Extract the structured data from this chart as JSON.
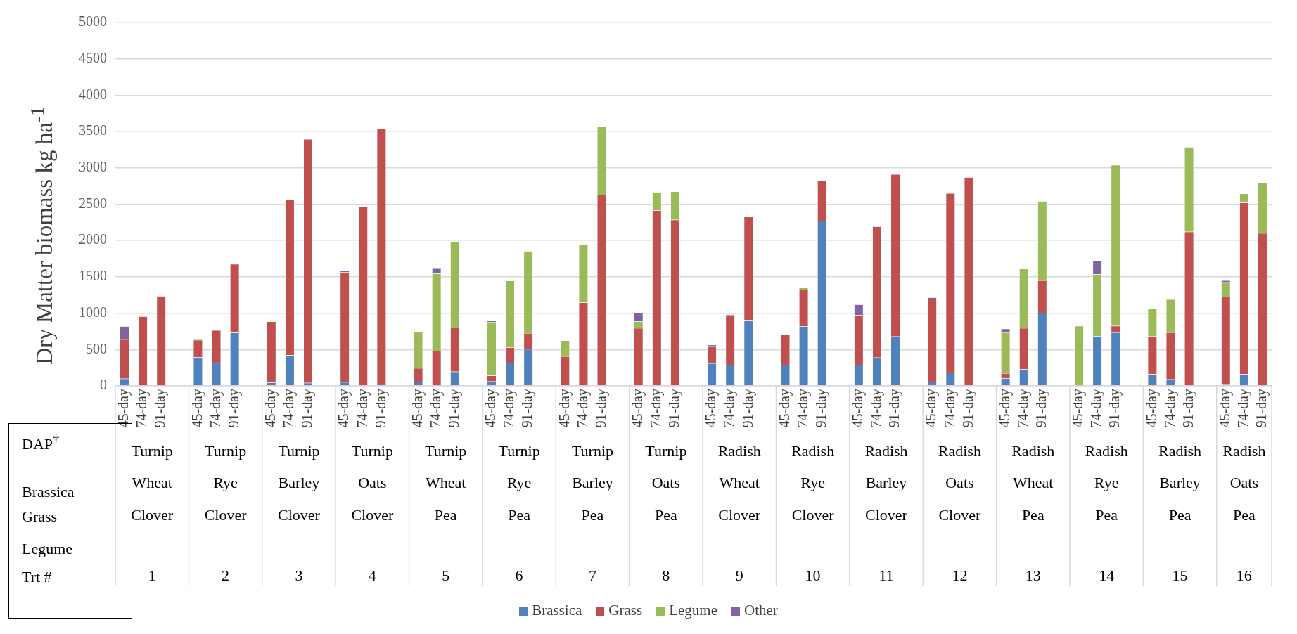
{
  "chart_data": {
    "type": "bar",
    "stacked": true,
    "ylabel": "Dry Matter biomass kg ha$^{-1}$",
    "ylim": [
      0,
      5000
    ],
    "yticks": [
      0,
      500,
      1000,
      1500,
      2000,
      2500,
      3000,
      3500,
      4000,
      4500,
      5000
    ],
    "grid": "y",
    "legend": "bottom",
    "categories": [
      "45-day",
      "74-day",
      "91-day",
      null,
      "45-day",
      "74-day",
      "91-day",
      null,
      "45-day",
      "74-day",
      "91-day",
      null,
      "45-day",
      "74-day",
      "91-day",
      null,
      "45-day",
      "74-day",
      "91-day",
      null,
      "45-day",
      "74-day",
      "91-day",
      null,
      "45-day",
      "74-day",
      "91-day",
      null,
      "45-day",
      "74-day",
      "91-day",
      null,
      "45-day",
      "74-day",
      "91-day",
      null,
      "45-day",
      "74-day",
      "91-day",
      null,
      "45-day",
      "74-day",
      "91-day",
      null,
      "45-day",
      "74-day",
      "91-day",
      null,
      "45-day",
      "74-day",
      "91-day",
      null,
      "45-day",
      "74-day",
      "91-day",
      null,
      "45-day",
      "74-day",
      "91-day",
      null,
      "45-day",
      "74-day",
      "91-day"
    ],
    "series": [
      {
        "name": "Brassica",
        "color": "#4f81bd",
        "values": [
          100,
          0,
          0,
          null,
          395,
          320,
          730,
          null,
          45,
          420,
          40,
          null,
          50,
          0,
          30,
          null,
          55,
          0,
          195,
          null,
          60,
          320,
          505,
          null,
          0,
          0,
          0,
          null,
          0,
          0,
          0,
          null,
          310,
          285,
          905,
          null,
          285,
          820,
          2270,
          null,
          290,
          390,
          680,
          null,
          55,
          180,
          0,
          null,
          105,
          230,
          1000,
          null,
          0,
          685,
          735,
          null,
          160,
          90,
          0,
          null,
          20,
          160,
          0
        ]
      },
      {
        "name": "Grass",
        "color": "#c0504d",
        "values": [
          540,
          955,
          1235,
          null,
          235,
          445,
          945,
          null,
          840,
          2145,
          3355,
          null,
          1515,
          2470,
          3515,
          null,
          190,
          480,
          605,
          null,
          80,
          210,
          220,
          null,
          405,
          1145,
          2625,
          null,
          795,
          2415,
          2285,
          null,
          235,
          685,
          1420,
          null,
          425,
          505,
          555,
          null,
          685,
          1800,
          2230,
          null,
          1140,
          2470,
          2870,
          null,
          70,
          565,
          450,
          null,
          0,
          0,
          90,
          null,
          525,
          645,
          2120,
          null,
          1205,
          2360,
          2100
        ]
      },
      {
        "name": "Legume",
        "color": "#9bbb59",
        "values": [
          0,
          0,
          0,
          null,
          15,
          0,
          0,
          null,
          0,
          0,
          0,
          null,
          0,
          0,
          0,
          null,
          495,
          1065,
          1180,
          null,
          740,
          915,
          1130,
          null,
          220,
          800,
          945,
          null,
          90,
          245,
          390,
          null,
          0,
          0,
          0,
          null,
          0,
          25,
          0,
          null,
          0,
          0,
          0,
          null,
          0,
          0,
          0,
          null,
          560,
          825,
          1090,
          null,
          825,
          850,
          2215,
          null,
          375,
          455,
          1165,
          null,
          200,
          125,
          690
        ]
      },
      {
        "name": "Other",
        "color": "#8064a2",
        "values": [
          180,
          0,
          0,
          null,
          0,
          0,
          0,
          null,
          0,
          0,
          0,
          null,
          25,
          0,
          0,
          null,
          0,
          80,
          0,
          null,
          15,
          0,
          0,
          null,
          0,
          0,
          0,
          null,
          120,
          0,
          0,
          null,
          20,
          15,
          0,
          null,
          0,
          0,
          0,
          null,
          145,
          15,
          0,
          null,
          20,
          0,
          0,
          null,
          50,
          0,
          0,
          null,
          0,
          190,
          0,
          null,
          0,
          0,
          0,
          null,
          25,
          0,
          0
        ]
      }
    ],
    "annotations": [
      "DAP$^{†}$",
      "Brassica",
      "Grass",
      "Legume",
      "Trt #",
      "Turnip",
      "Wheat",
      "Clover",
      "1",
      "Turnip",
      "Rye",
      "Clover",
      "2",
      "Turnip",
      "Barley",
      "Clover",
      "3",
      "Turnip",
      "Oats",
      "Clover",
      "4",
      "Turnip",
      "Wheat",
      "Pea",
      "5",
      "Turnip",
      "Rye",
      "Pea",
      "6",
      "Turnip",
      "Barley",
      "Pea",
      "7",
      "Turnip",
      "Oats",
      "Pea",
      "8",
      "Radish",
      "Wheat",
      "Clover",
      "9",
      "Radish",
      "Rye",
      "Clover",
      "10",
      "Radish",
      "Barley",
      "Clover",
      "11",
      "Radish",
      "Oats",
      "Clover",
      "12",
      "Radish",
      "Wheat",
      "Pea",
      "13",
      "Radish",
      "Rye",
      "Pea",
      "14",
      "Radish",
      "Barley",
      "Pea",
      "15",
      "Radish",
      "Oats",
      "Pea",
      "16"
    ]
  }
}
